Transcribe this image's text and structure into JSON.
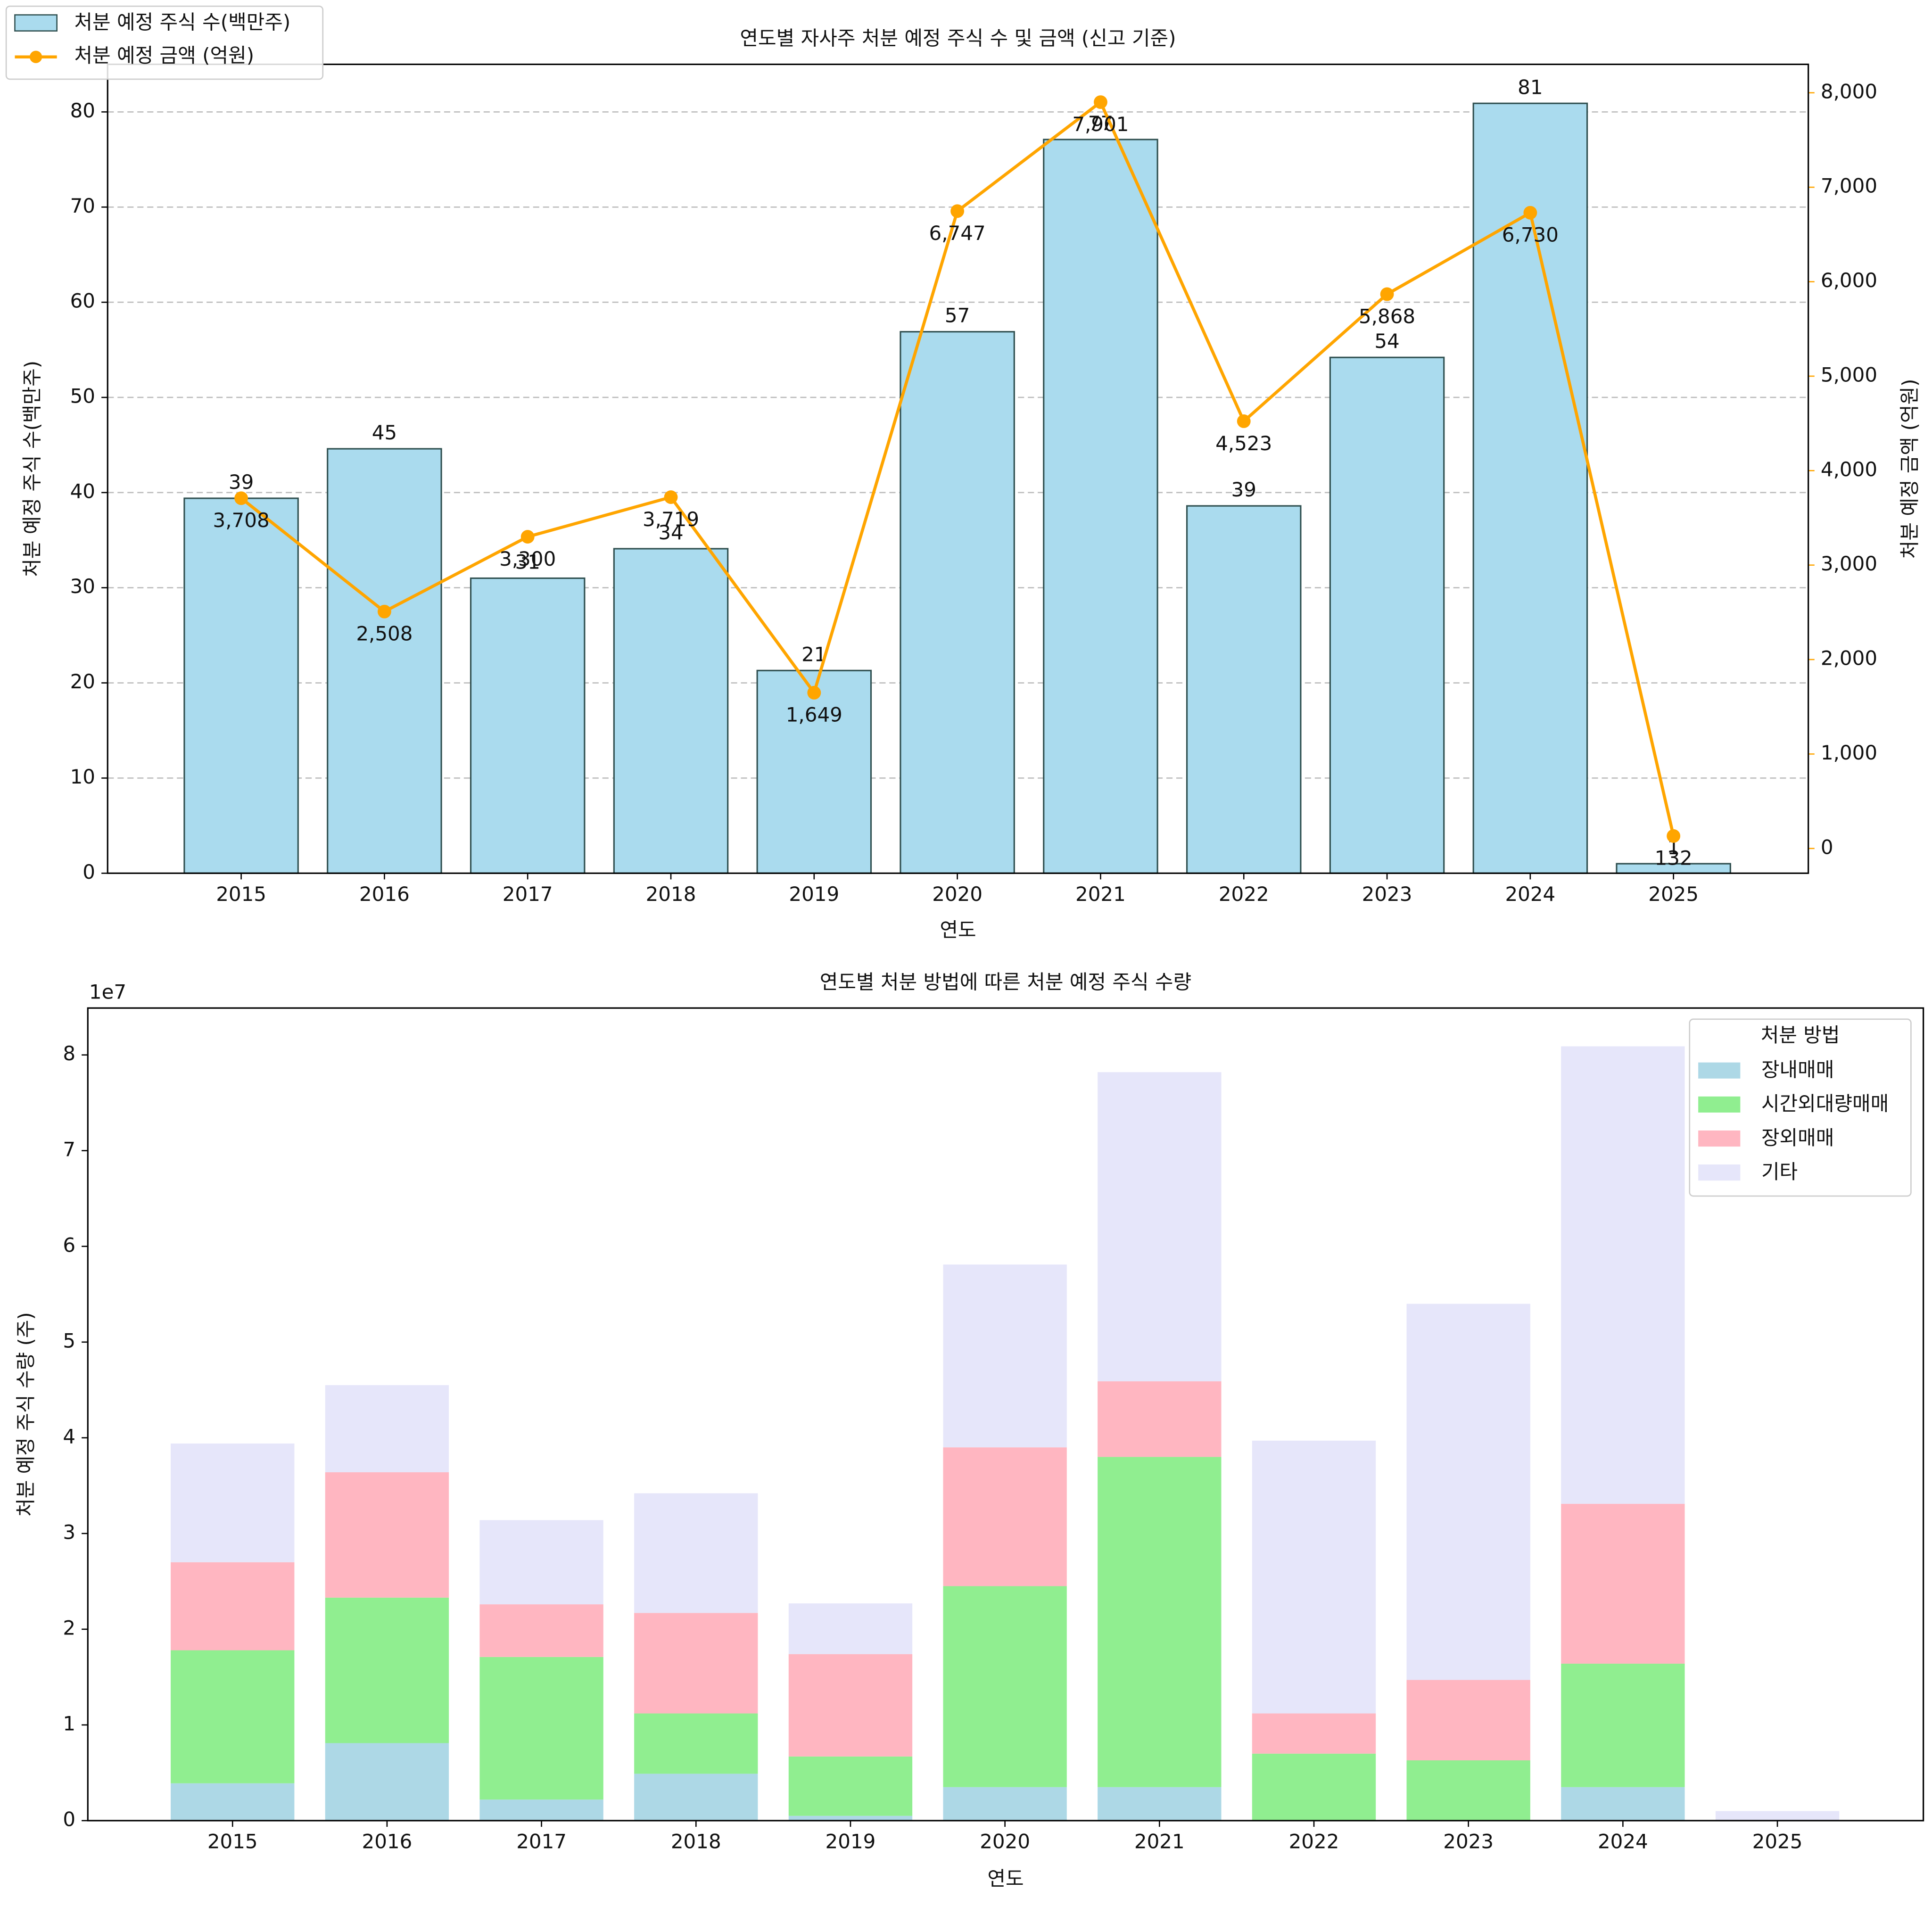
{
  "chart_data": [
    {
      "type": "bar_line",
      "title": "연도별 자사주 처분 예정 주식 수 및 금액 (신고 기준)",
      "xlabel": "연도",
      "ylabel": "처분 예정 주식 수(백만주)",
      "y2label": "처분 예정 금액 (억원)",
      "ycolor": "#1c1c8f",
      "y2color": "#ffa500",
      "categories": [
        "2015",
        "2016",
        "2017",
        "2018",
        "2019",
        "2020",
        "2021",
        "2022",
        "2023",
        "2024",
        "2025"
      ],
      "series": [
        {
          "name": "처분 예정 주식 수(백만주)",
          "type": "bar",
          "color": "#aadbee",
          "values": [
            39.4,
            44.6,
            31.0,
            34.1,
            21.3,
            56.9,
            77.1,
            38.6,
            54.2,
            80.9,
            1.0
          ],
          "value_labels": [
            "39",
            "45",
            "31",
            "34",
            "21",
            "57",
            "77",
            "39",
            "54",
            "81",
            "1"
          ]
        },
        {
          "name": "처분 예정 금액 (억원)",
          "type": "line",
          "axis": "y2",
          "color": "#ffa500",
          "values": [
            3708,
            2508,
            3300,
            3719,
            1649,
            6747,
            7901,
            4523,
            5868,
            6730,
            132
          ],
          "value_labels": [
            "3,708",
            "2,508",
            "3,300",
            "3,719",
            "1,649",
            "6,747",
            "7,901",
            "4,523",
            "5,868",
            "6,730",
            "132"
          ]
        }
      ],
      "ylim": [
        0,
        85
      ],
      "yticks": [
        0,
        10,
        20,
        30,
        40,
        50,
        60,
        70,
        80
      ],
      "y2lim": [
        -262,
        8301
      ],
      "y2ticks": [
        0,
        {
          "value": 1000,
          "label": "1,000"
        },
        {
          "value": 2000,
          "label": "2,000"
        },
        {
          "value": 3000,
          "label": "3,000"
        },
        {
          "value": 4000,
          "label": "4,000"
        },
        {
          "value": 5000,
          "label": "5,000"
        },
        {
          "value": 6000,
          "label": "6,000"
        },
        {
          "value": 7000,
          "label": "7,000"
        },
        {
          "value": 8000,
          "label": "8,000"
        }
      ],
      "grid": true,
      "legend": "upper left"
    },
    {
      "type": "stacked_bar",
      "title": "연도별 처분 방법에 따른 처분 예정 주식 수량",
      "xlabel": "연도",
      "ylabel": "처분 예정 주식 수량 (주)",
      "y_offset_label": "1e7",
      "categories": [
        "2015",
        "2016",
        "2017",
        "2018",
        "2019",
        "2020",
        "2021",
        "2022",
        "2023",
        "2024",
        "2025"
      ],
      "series": [
        {
          "name": "장내매매",
          "color": "#add8e6",
          "values": [
            0.39,
            0.81,
            0.22,
            0.49,
            0.05,
            0.35,
            0.35,
            0,
            0,
            0.35,
            0
          ]
        },
        {
          "name": "시간외대량매매",
          "color": "#90ee90",
          "values": [
            1.39,
            1.52,
            1.49,
            0.63,
            0.62,
            2.1,
            3.45,
            0.7,
            0.63,
            1.29,
            0
          ]
        },
        {
          "name": "장외매매",
          "color": "#ffb6c1",
          "values": [
            0.92,
            1.31,
            0.55,
            1.05,
            1.07,
            1.45,
            0.79,
            0.42,
            0.84,
            1.67,
            0
          ]
        },
        {
          "name": "기타",
          "color": "#e6e6fa",
          "values": [
            1.24,
            0.91,
            0.88,
            1.25,
            0.53,
            1.91,
            3.23,
            2.85,
            3.93,
            4.78,
            0.1
          ]
        }
      ],
      "ylim": [
        0,
        8.49
      ],
      "yticks": [
        0,
        1,
        2,
        3,
        4,
        5,
        6,
        7,
        8
      ],
      "grid": false,
      "legend": "upper right",
      "legend_title": "처분 방법"
    }
  ]
}
